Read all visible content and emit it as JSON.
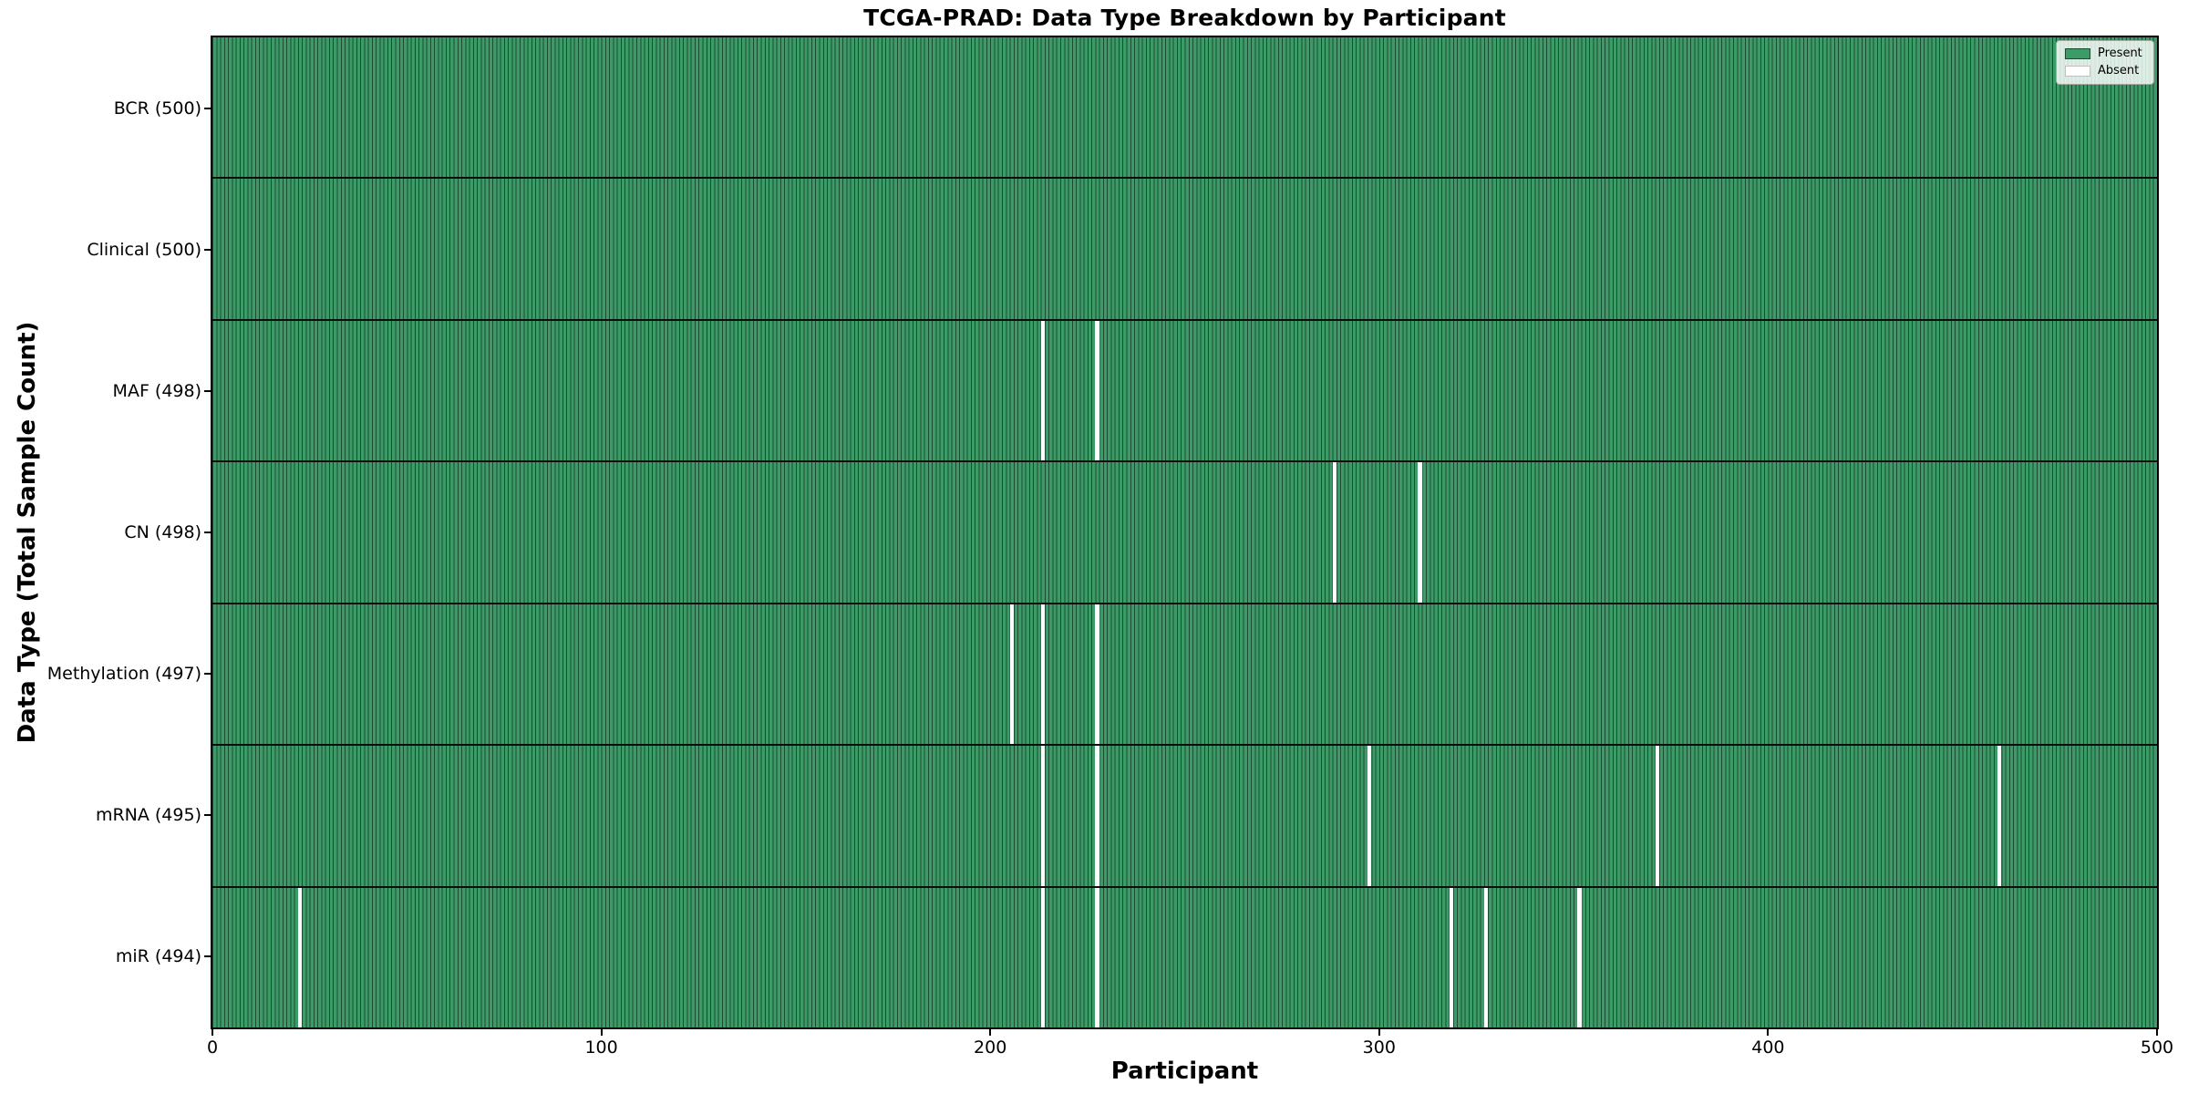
{
  "title": "TCGA-PRAD: Data Type Breakdown by Participant",
  "axes": {
    "xlabel": "Participant",
    "ylabel": "Data Type (Total Sample Count)",
    "x_ticks": [
      0,
      100,
      200,
      300,
      400,
      500
    ],
    "x_range": [
      0,
      500
    ]
  },
  "legend": {
    "position": "upper-right",
    "items": [
      {
        "label": "Present",
        "color": "#3d9b68"
      },
      {
        "label": "Absent",
        "color": "#ffffff"
      }
    ]
  },
  "colors": {
    "present_fill": "#3d9b68",
    "bar_edge": "#1b4c33",
    "absent_fill": "#ffffff",
    "row_separator": "#0d0d0d",
    "plot_border": "#000000",
    "legend_bg": "rgba(255,255,255,0.82)",
    "legend_border": "#a0a8a0"
  },
  "chart_data": {
    "type": "heatmap",
    "title": "TCGA-PRAD: Data Type Breakdown by Participant",
    "xlabel": "Participant",
    "ylabel": "Data Type (Total Sample Count)",
    "x_range": [
      0,
      500
    ],
    "x_ticks": [
      0,
      100,
      200,
      300,
      400,
      500
    ],
    "n_participants": 500,
    "legend": [
      "Present",
      "Absent"
    ],
    "grid": false,
    "rows": [
      {
        "label": "BCR (500)",
        "data_type": "BCR",
        "total": 500,
        "missing_participants": []
      },
      {
        "label": "Clinical (500)",
        "data_type": "Clinical",
        "total": 500,
        "missing_participants": []
      },
      {
        "label": "MAF (498)",
        "data_type": "MAF",
        "total": 498,
        "missing_participants": [
          213,
          227
        ]
      },
      {
        "label": "CN (498)",
        "data_type": "CN",
        "total": 498,
        "missing_participants": [
          288,
          310
        ]
      },
      {
        "label": "Methylation (497)",
        "data_type": "Methylation",
        "total": 497,
        "missing_participants": [
          205,
          213,
          227
        ]
      },
      {
        "label": "mRNA (495)",
        "data_type": "mRNA",
        "total": 495,
        "missing_participants": [
          213,
          227,
          297,
          371,
          459
        ]
      },
      {
        "label": "miR (494)",
        "data_type": "miR",
        "total": 494,
        "missing_participants": [
          22,
          213,
          227,
          318,
          327,
          351
        ]
      }
    ]
  }
}
